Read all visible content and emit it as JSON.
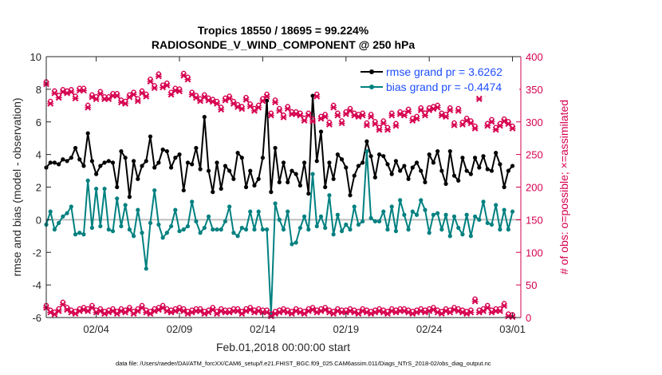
{
  "chart_data": {
    "type": "line",
    "title": "Tropics 18550 / 18695 = 99.224%",
    "subtitle": "RADIOSONDE_V_WIND_COMPONENT @ 250 hPa",
    "xlabel": "Feb.01,2018 00:00:00 start",
    "ylabel_left": "rmse and bias (model - observation)",
    "ylabel_right": "# of obs: o=possible; ×=assimilated",
    "footer": "data file: /Users/raeder/DAI/ATM_forcXX/CAM6_setup/f.e21.FHIST_BGC.f09_025.CAM6assim.011/Diags_NTrS_2018-02/obs_diag_output.nc",
    "x_range": [
      0,
      28.5
    ],
    "x_ticks": [
      3,
      8,
      13,
      18,
      23,
      28
    ],
    "x_tick_labels": [
      "02/04",
      "02/09",
      "02/14",
      "02/19",
      "02/24",
      "03/01"
    ],
    "ylim_left": [
      -6,
      10
    ],
    "yticks_left": [
      -6,
      -4,
      -2,
      0,
      2,
      4,
      6,
      8,
      10
    ],
    "ylim_right": [
      0,
      400
    ],
    "yticks_right": [
      0,
      50,
      100,
      150,
      200,
      250,
      300,
      350,
      400
    ],
    "colors": {
      "rmse": "#000000",
      "bias": "#008080",
      "obs": "#d6004f",
      "legend_text": "#1f4fff",
      "zero_line": "#bdbdbd"
    },
    "x": [
      0.0,
      0.25,
      0.5,
      0.75,
      1.0,
      1.25,
      1.5,
      1.75,
      2.0,
      2.25,
      2.5,
      2.75,
      3.0,
      3.25,
      3.5,
      3.75,
      4.0,
      4.25,
      4.5,
      4.75,
      5.0,
      5.25,
      5.5,
      5.75,
      6.0,
      6.25,
      6.5,
      6.75,
      7.0,
      7.25,
      7.5,
      7.75,
      8.0,
      8.25,
      8.5,
      8.75,
      9.0,
      9.25,
      9.5,
      9.75,
      10.0,
      10.25,
      10.5,
      10.75,
      11.0,
      11.25,
      11.5,
      11.75,
      12.0,
      12.25,
      12.5,
      12.75,
      13.0,
      13.25,
      13.5,
      13.75,
      14.0,
      14.25,
      14.5,
      14.75,
      15.0,
      15.25,
      15.5,
      15.75,
      16.0,
      16.25,
      16.5,
      16.75,
      17.0,
      17.25,
      17.5,
      17.75,
      18.0,
      18.25,
      18.5,
      18.75,
      19.0,
      19.25,
      19.5,
      19.75,
      20.0,
      20.25,
      20.5,
      20.75,
      21.0,
      21.25,
      21.5,
      21.75,
      22.0,
      22.25,
      22.5,
      22.75,
      23.0,
      23.25,
      23.5,
      23.75,
      24.0,
      24.25,
      24.5,
      24.75,
      25.0,
      25.25,
      25.5,
      25.75,
      26.0,
      26.25,
      26.5,
      26.75,
      27.0,
      27.25,
      27.5,
      27.75,
      28.0
    ],
    "series": [
      {
        "name": "rmse grand pr = 3.6262",
        "axis": "left",
        "marker": "dot",
        "values": [
          3.2,
          3.5,
          3.5,
          3.4,
          3.7,
          3.6,
          3.8,
          4.4,
          3.7,
          3.3,
          5.3,
          3.6,
          2.8,
          3.3,
          3.5,
          3.6,
          3.5,
          2.0,
          4.2,
          3.8,
          1.4,
          3.6,
          2.5,
          3.3,
          3.6,
          5.1,
          3.2,
          3.5,
          4.3,
          4.2,
          3.2,
          3.8,
          4.0,
          1.8,
          3.5,
          3.4,
          4.4,
          3.1,
          6.3,
          3.0,
          1.7,
          3.5,
          1.9,
          3.3,
          3.0,
          2.5,
          4.1,
          3.8,
          2.0,
          3.0,
          2.1,
          2.5,
          3.8,
          7.3,
          1.7,
          4.4,
          2.3,
          3.5,
          2.3,
          3.0,
          2.8,
          2.1,
          3.5,
          1.6,
          7.6,
          3.6,
          5.4,
          2.0,
          3.5,
          2.5,
          4.0,
          3.7,
          3.2,
          1.5,
          2.7,
          3.3,
          3.5,
          4.8,
          3.9,
          2.6,
          4.0,
          3.9,
          3.4,
          2.8,
          3.6,
          3.0,
          3.3,
          2.5,
          3.2,
          3.5,
          3.0,
          2.3,
          4.0,
          3.5,
          4.2,
          3.0,
          2.2,
          4.2,
          2.7,
          2.4,
          3.8,
          3.0,
          2.8,
          3.8,
          3.2,
          3.9,
          3.1,
          3.0,
          4.1,
          3.4,
          2.0,
          3.0,
          3.3
        ]
      },
      {
        "name": "bias grand pr = -0.4474",
        "axis": "left",
        "marker": "dot",
        "values": [
          -0.3,
          0.5,
          -0.6,
          -0.2,
          0.2,
          0.4,
          0.8,
          -0.9,
          -0.8,
          -0.9,
          2.4,
          -0.5,
          1.9,
          -0.4,
          1.9,
          -0.6,
          -0.7,
          1.3,
          -0.4,
          0.9,
          -0.6,
          -1.0,
          0.6,
          -0.8,
          -3.0,
          -0.2,
          1.8,
          -0.3,
          -1.1,
          -0.8,
          -0.4,
          0.6,
          -0.7,
          -0.6,
          -0.4,
          1.1,
          -0.1,
          -0.8,
          -0.5,
          0.2,
          -0.6,
          -0.6,
          -0.6,
          -0.1,
          0.8,
          -0.8,
          -1.0,
          -0.5,
          -0.6,
          0.5,
          -0.6,
          0.5,
          -0.6,
          -0.6,
          -5.8,
          1.0,
          0.0,
          -0.6,
          0.5,
          -1.5,
          -1.4,
          -0.5,
          0.2,
          -0.6,
          2.8,
          -0.4,
          0.2,
          -0.5,
          1.5,
          -0.9,
          0.3,
          -0.7,
          -0.3,
          -0.6,
          0.8,
          -0.3,
          -0.1,
          4.2,
          0.1,
          -0.1,
          -0.1,
          0.5,
          -0.6,
          0.8,
          -0.7,
          1.2,
          0.3,
          -0.6,
          0.5,
          0.3,
          1.2,
          0.6,
          -0.8,
          0.3,
          0.4,
          -0.6,
          0.3,
          -1.0,
          0.2,
          -0.5,
          -0.9,
          0.3,
          -1.0,
          0.2,
          0.0,
          1.1,
          -0.2,
          -0.3,
          0.9,
          -0.6,
          0.6,
          -0.6,
          0.5
        ]
      },
      {
        "name": "# obs possible",
        "axis": "right",
        "marker": "o",
        "values": [
          358,
          328,
          344,
          337,
          346,
          344,
          346,
          336,
          348,
          348,
          322,
          338,
          335,
          343,
          335,
          335,
          340,
          340,
          330,
          328,
          338,
          342,
          332,
          344,
          339,
          362,
          352,
          370,
          353,
          356,
          342,
          348,
          347,
          371,
          365,
          342,
          337,
          332,
          338,
          333,
          331,
          328,
          319,
          333,
          336,
          328,
          323,
          320,
          334,
          324,
          317,
          322,
          332,
          339,
          310,
          330,
          317,
          307,
          320,
          312,
          312,
          310,
          302,
          310,
          301,
          339,
          305,
          308,
          296,
          322,
          310,
          298,
          312,
          317,
          310,
          308,
          310,
          295,
          308,
          297,
          288,
          298,
          288,
          310,
          294,
          312,
          310,
          316,
          302,
          305,
          318,
          310,
          318,
          320,
          322,
          310,
          308,
          318,
          295,
          317,
          296,
          302,
          298,
          290,
          335,
          344,
          294,
          300,
          288,
          294,
          301,
          297,
          290
        ]
      },
      {
        "name": "# obs assimilated",
        "axis": "right",
        "marker": "x",
        "values": [
          358,
          328,
          344,
          337,
          346,
          344,
          346,
          336,
          348,
          348,
          322,
          338,
          335,
          343,
          335,
          335,
          340,
          340,
          330,
          328,
          338,
          342,
          332,
          344,
          339,
          362,
          352,
          370,
          353,
          356,
          342,
          348,
          347,
          371,
          365,
          342,
          337,
          332,
          338,
          333,
          331,
          328,
          319,
          333,
          336,
          328,
          323,
          320,
          334,
          324,
          317,
          322,
          332,
          339,
          310,
          330,
          317,
          307,
          320,
          312,
          312,
          310,
          302,
          310,
          301,
          339,
          305,
          308,
          296,
          322,
          310,
          298,
          312,
          317,
          310,
          308,
          310,
          295,
          308,
          297,
          288,
          298,
          288,
          310,
          294,
          312,
          310,
          316,
          302,
          305,
          318,
          310,
          318,
          320,
          322,
          310,
          308,
          318,
          295,
          317,
          296,
          302,
          298,
          290,
          335,
          344,
          294,
          300,
          288,
          294,
          301,
          297,
          290
        ]
      },
      {
        "name": "# obs possible (bias level)",
        "axis": "right",
        "marker": "o",
        "values": [
          15,
          8,
          5,
          10,
          20,
          12,
          8,
          6,
          10,
          12,
          10,
          15,
          8,
          10,
          6,
          8,
          10,
          6,
          10,
          8,
          12,
          6,
          10,
          15,
          8,
          6,
          10,
          12,
          15,
          10,
          8,
          10,
          12,
          10,
          6,
          8,
          10,
          10,
          6,
          8,
          12,
          6,
          10,
          8,
          8,
          10,
          10,
          6,
          10,
          12,
          8,
          10,
          8,
          8,
          2,
          6,
          8,
          10,
          8,
          6,
          10,
          8,
          6,
          10,
          12,
          8,
          10,
          12,
          8,
          6,
          10,
          8,
          8,
          10,
          8,
          6,
          10,
          8,
          6,
          8,
          10,
          8,
          6,
          10,
          8,
          10,
          10,
          8,
          6,
          8,
          10,
          8,
          10,
          12,
          8,
          6,
          10,
          8,
          12,
          10,
          8,
          6,
          8,
          25,
          8,
          10,
          15,
          8,
          10,
          10,
          18,
          2,
          1
        ]
      }
    ]
  }
}
